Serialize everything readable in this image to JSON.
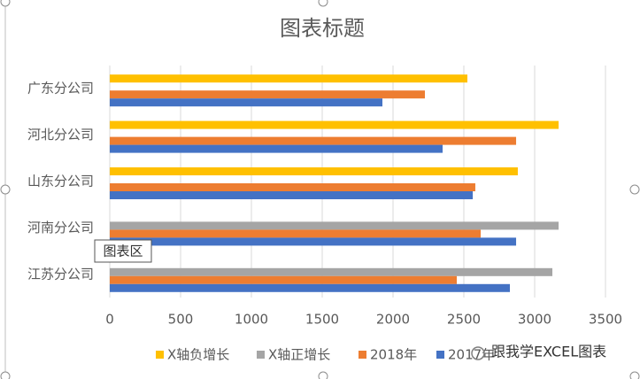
{
  "chart_data": {
    "type": "bar",
    "orientation": "horizontal",
    "title": "图表标题",
    "categories": [
      "广东分公司",
      "河北分公司",
      "山东分公司",
      "河南分公司",
      "江苏分公司"
    ],
    "series": [
      {
        "name": "X轴负增长",
        "color": "#ffc000",
        "values": [
          2525,
          3169,
          2881,
          null,
          null
        ]
      },
      {
        "name": "X轴正增长",
        "color": "#a5a5a5",
        "values": [
          null,
          null,
          null,
          3169,
          3125
        ]
      },
      {
        "name": "2018年",
        "color": "#ed7d31",
        "values": [
          2225,
          2869,
          2581,
          2619,
          2450
        ]
      },
      {
        "name": "2017年",
        "color": "#4472c4",
        "values": [
          1925,
          2350,
          2563,
          2869,
          2825
        ]
      }
    ],
    "xlim": [
      0,
      3500
    ],
    "xticks": [
      0,
      500,
      1000,
      1500,
      2000,
      2500,
      3000,
      3500
    ],
    "grid": true,
    "legend": "bottom",
    "tooltip": "图表区",
    "watermark": "跟我学EXCEL图表"
  }
}
